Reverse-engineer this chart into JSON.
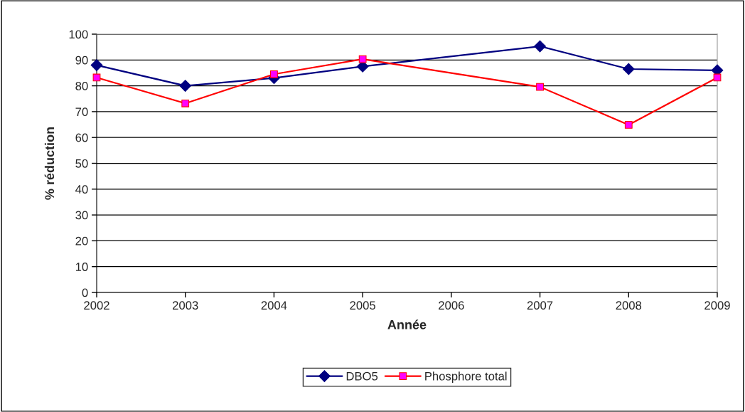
{
  "chart_data": {
    "type": "line",
    "xlabel": "Année",
    "ylabel": "% réduction",
    "xlim": [
      2002,
      2009
    ],
    "xticks": [
      2002,
      2003,
      2004,
      2005,
      2006,
      2007,
      2008,
      2009
    ],
    "ylim": [
      0,
      100
    ],
    "yticks": [
      0,
      10,
      20,
      30,
      40,
      50,
      60,
      70,
      80,
      90,
      100
    ],
    "grid": "y",
    "legend": "bottom",
    "line_style": "solid",
    "series": [
      {
        "name": "DBO5",
        "color": "#000080",
        "marker": "diamond",
        "x": [
          2002,
          2003,
          2004,
          2005,
          2007,
          2008,
          2009
        ],
        "values": [
          88,
          80,
          83,
          87.5,
          95.3,
          86.5,
          86
        ]
      },
      {
        "name": "Phosphore total",
        "color": "#ff0000",
        "marker": "square",
        "x": [
          2002,
          2003,
          2004,
          2005,
          2007,
          2008,
          2009
        ],
        "values": [
          83.2,
          73.2,
          84.5,
          90.3,
          79.6,
          64.9,
          83.2
        ]
      }
    ]
  }
}
